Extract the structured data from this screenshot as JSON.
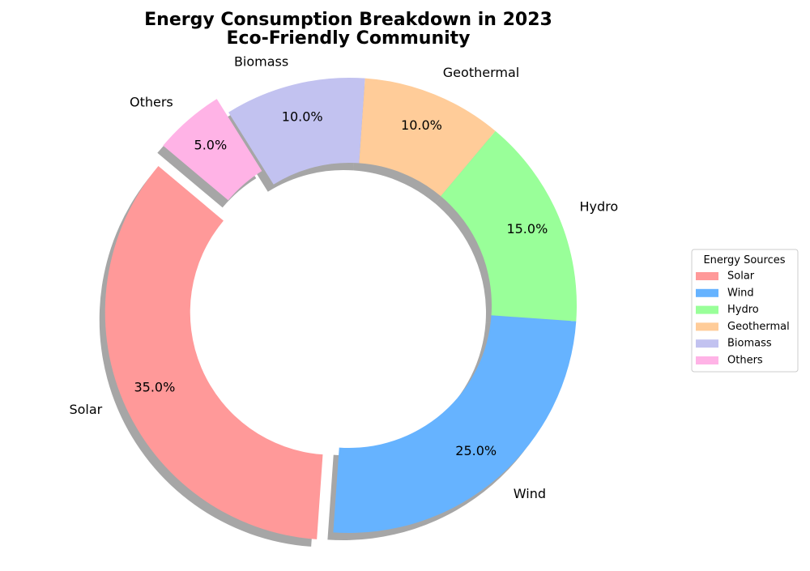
{
  "chart_data": {
    "type": "pie",
    "donut": true,
    "title": [
      "Energy Consumption Breakdown in 2023",
      "Eco-Friendly Community"
    ],
    "categories": [
      "Solar",
      "Wind",
      "Hydro",
      "Geothermal",
      "Biomass",
      "Others"
    ],
    "values": [
      35,
      25,
      15,
      10,
      10,
      5
    ],
    "percent_labels": [
      "35.0%",
      "25.0%",
      "15.0%",
      "10.0%",
      "10.0%",
      "5.0%"
    ],
    "colors": [
      "#ff9999",
      "#66b3ff",
      "#99ff99",
      "#ffcc99",
      "#c2c2f0",
      "#ffb3e6"
    ],
    "exploded": [
      "Solar",
      "Others"
    ],
    "shadow": true,
    "legend": {
      "title": "Energy Sources",
      "placement": "center-right",
      "entries": [
        "Solar",
        "Wind",
        "Hydro",
        "Geothermal",
        "Biomass",
        "Others"
      ]
    }
  }
}
